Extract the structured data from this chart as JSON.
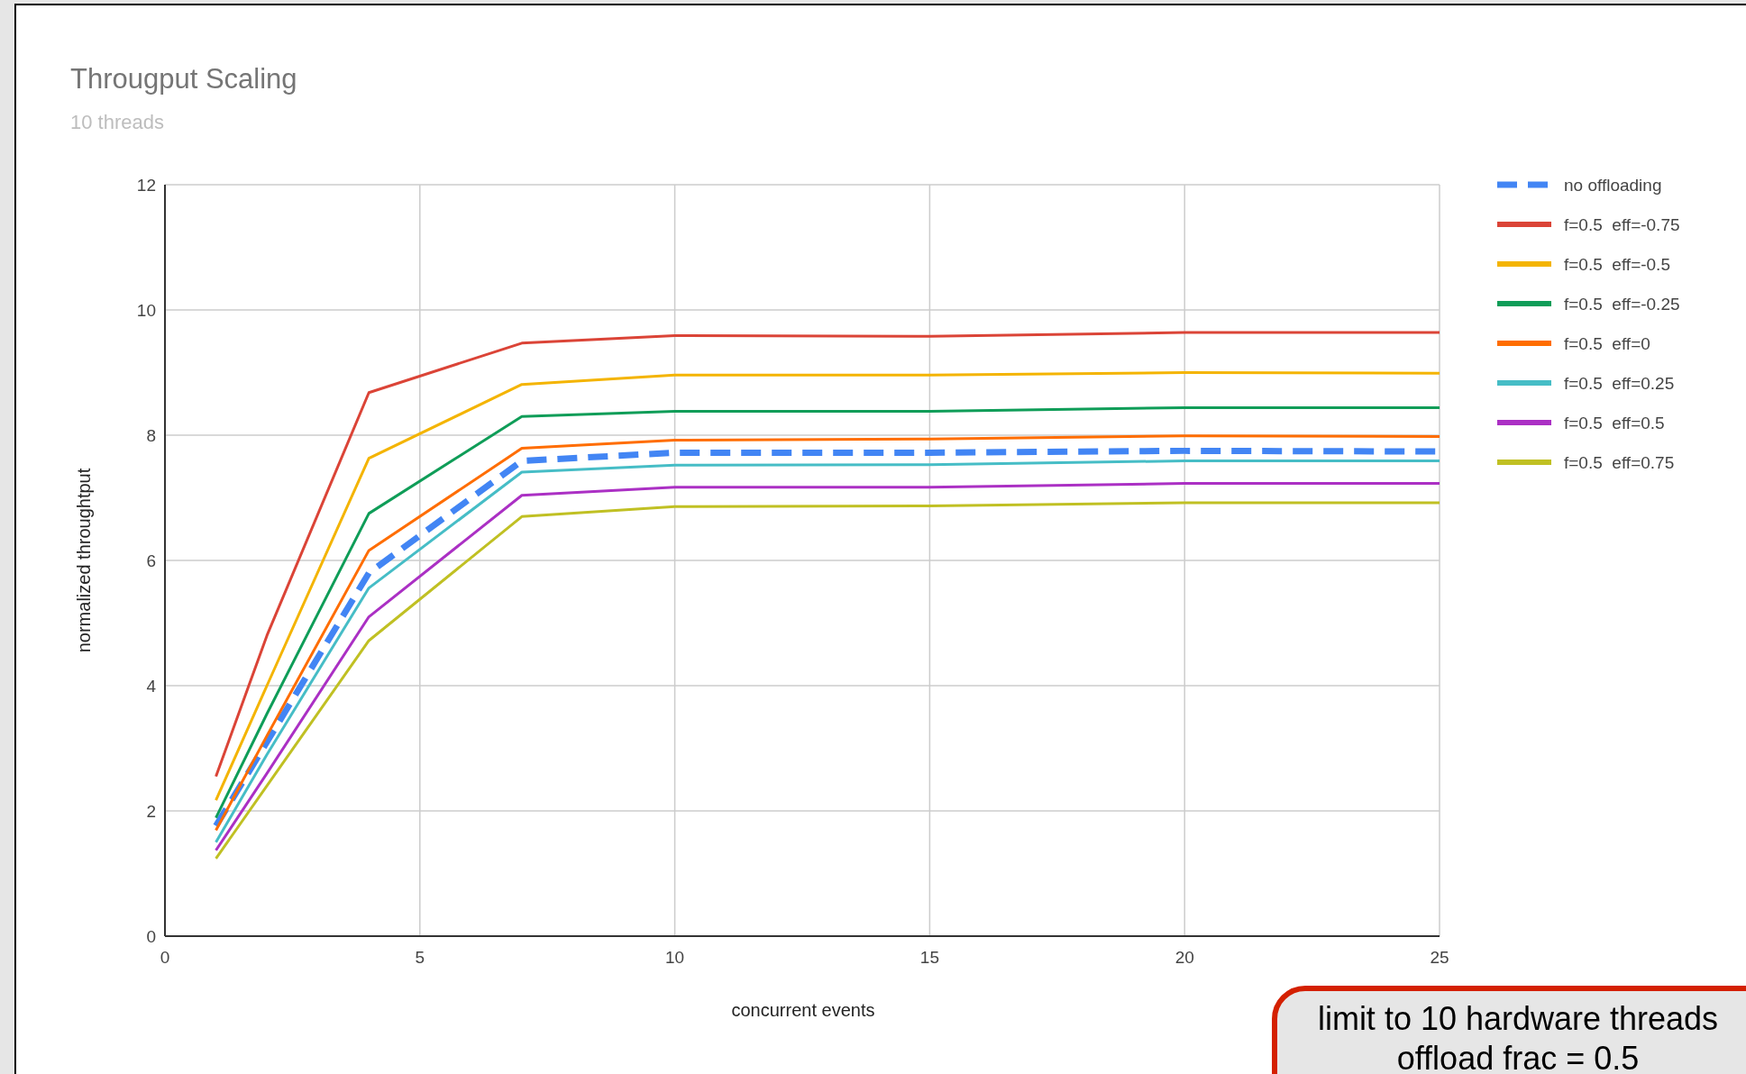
{
  "chart_data": {
    "type": "line",
    "title": "Througput Scaling",
    "subtitle": "10 threads",
    "xlabel": "concurrent events",
    "ylabel": "normalized throughtput",
    "annotations": [
      "limit to 10 hardware threads\noffload frac = 0.5"
    ],
    "x": [
      1,
      2,
      4,
      7,
      10,
      15,
      20,
      25
    ],
    "xlim": [
      0,
      25
    ],
    "xticks": [
      0,
      5,
      10,
      15,
      20,
      25
    ],
    "ylim": [
      0,
      12
    ],
    "yticks": [
      0,
      2,
      4,
      6,
      8,
      10,
      12
    ],
    "grid": true,
    "legend": "right",
    "series": [
      {
        "name": "no offloading",
        "color": "#4285f4",
        "line_style": "dashed",
        "values": [
          1.76,
          3.1,
          5.8,
          7.59,
          7.72,
          7.72,
          7.75,
          7.74
        ]
      },
      {
        "name": "f=0.5  eff=-0.75",
        "color": "#db4437",
        "values": [
          2.55,
          4.8,
          8.68,
          9.47,
          9.59,
          9.58,
          9.64,
          9.64
        ]
      },
      {
        "name": "f=0.5  eff=-0.5",
        "color": "#f4b400",
        "values": [
          2.17,
          4.0,
          7.63,
          8.81,
          8.96,
          8.96,
          9.0,
          8.99
        ]
      },
      {
        "name": "f=0.5  eff=-0.25",
        "color": "#0f9d58",
        "values": [
          1.89,
          3.55,
          6.75,
          8.3,
          8.38,
          8.38,
          8.44,
          8.44
        ]
      },
      {
        "name": "f=0.5  eff=0",
        "color": "#ff6d00",
        "values": [
          1.69,
          3.2,
          6.16,
          7.79,
          7.92,
          7.94,
          7.99,
          7.98
        ]
      },
      {
        "name": "f=0.5  eff=0.25",
        "color": "#46bdc6",
        "values": [
          1.5,
          2.9,
          5.56,
          7.41,
          7.52,
          7.53,
          7.59,
          7.59
        ]
      },
      {
        "name": "f=0.5  eff=0.5",
        "color": "#ab30c4",
        "values": [
          1.37,
          2.6,
          5.1,
          7.04,
          7.17,
          7.17,
          7.23,
          7.23
        ]
      },
      {
        "name": "f=0.5  eff=0.75",
        "color": "#c0c023",
        "values": [
          1.24,
          2.4,
          4.72,
          6.7,
          6.86,
          6.87,
          6.92,
          6.92
        ]
      }
    ]
  }
}
